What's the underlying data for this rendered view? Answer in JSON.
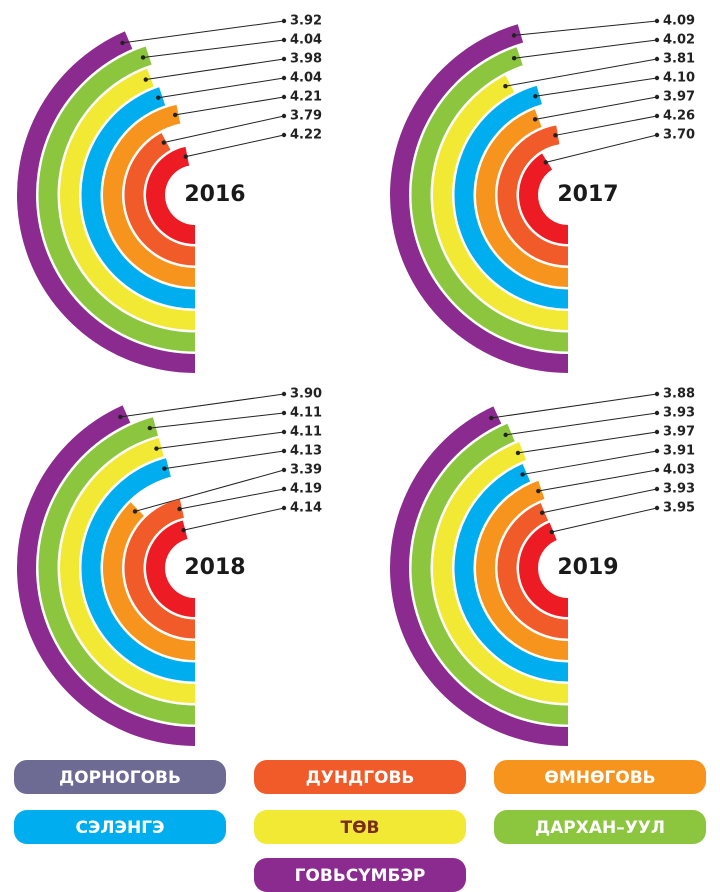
{
  "chart_data": {
    "type": "radial_bar",
    "categories": [
      "2016",
      "2017",
      "2018",
      "2019"
    ],
    "rlim": [
      0,
      4.5
    ],
    "series": [
      {
        "name": "ДОРНОГОВЬ",
        "color": "#ed1c24",
        "legend_color": "#6d6b93",
        "values": [
          4.22,
          3.7,
          4.14,
          3.95
        ],
        "value_labels": [
          "4.22",
          "3.70",
          "4.14",
          "3.95"
        ]
      },
      {
        "name": "ДУНДГОВЬ",
        "color": "#f15a29",
        "legend_color": "#f15a29",
        "values": [
          3.79,
          4.26,
          4.19,
          3.93
        ],
        "value_labels": [
          "3.79",
          "4.26",
          "4.19",
          "3.93"
        ]
      },
      {
        "name": "ӨМНӨГОВЬ",
        "color": "#f7941d",
        "legend_color": "#f7941d",
        "values": [
          4.21,
          3.97,
          3.39,
          4.03
        ],
        "value_labels": [
          "4.21",
          "3.97",
          "3.39",
          "4.03"
        ]
      },
      {
        "name": "СЭЛЭНГЭ",
        "color": "#00aeef",
        "legend_color": "#00aeef",
        "values": [
          4.04,
          4.1,
          4.13,
          3.91
        ],
        "value_labels": [
          "4.04",
          "4.10",
          "4.13",
          "3.91"
        ]
      },
      {
        "name": "ТӨВ",
        "color": "#f2e935",
        "legend_color": "#f2e935",
        "values": [
          3.98,
          3.81,
          4.11,
          3.97
        ],
        "value_labels": [
          "3.98",
          "3.81",
          "4.11",
          "3.97"
        ]
      },
      {
        "name": "ДАРХАН–УУЛ",
        "color": "#8cc63f",
        "legend_color": "#8cc63f",
        "values": [
          4.04,
          4.02,
          4.11,
          3.93
        ],
        "value_labels": [
          "4.04",
          "4.02",
          "4.11",
          "3.93"
        ]
      },
      {
        "name": "ГОВЬСҮМБЭР",
        "color": "#8b2a8f",
        "legend_color": "#8b2a8f",
        "values": [
          3.92,
          4.09,
          3.9,
          3.88
        ],
        "value_labels": [
          "3.92",
          "4.09",
          "3.90",
          "3.88"
        ]
      }
    ]
  }
}
